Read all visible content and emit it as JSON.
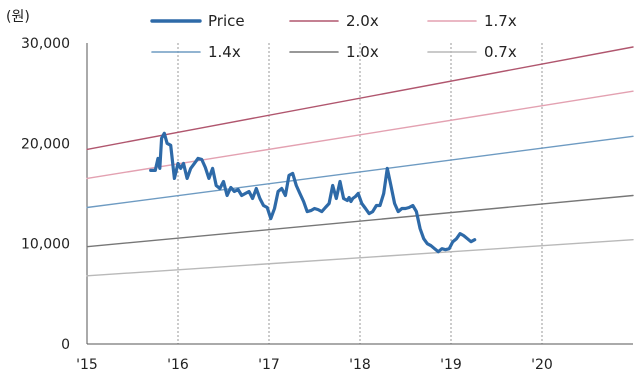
{
  "chart_data": {
    "type": "line",
    "y_unit": "(원)",
    "ylim": [
      0,
      30000
    ],
    "xlim": [
      2015.0,
      2021.0
    ],
    "y_ticks": [
      {
        "value": 0,
        "label": "0"
      },
      {
        "value": 10000,
        "label": "10,000"
      },
      {
        "value": 20000,
        "label": "20,000"
      },
      {
        "value": 30000,
        "label": "30,000"
      }
    ],
    "x_ticks": [
      {
        "value": 2015.0,
        "label": "'15"
      },
      {
        "value": 2016.0,
        "label": "'16"
      },
      {
        "value": 2017.0,
        "label": "'17"
      },
      {
        "value": 2018.0,
        "label": "'18"
      },
      {
        "value": 2019.0,
        "label": "'19"
      },
      {
        "value": 2020.0,
        "label": "'20"
      }
    ],
    "grid": "vertical dashed",
    "legend": "top",
    "series": [
      {
        "name": "Price",
        "color": "#2e6aa8",
        "width": 3.2,
        "x": [
          2015.7,
          2015.75,
          2015.78,
          2015.8,
          2015.82,
          2015.85,
          2015.88,
          2015.92,
          2015.96,
          2016.0,
          2016.03,
          2016.06,
          2016.1,
          2016.14,
          2016.18,
          2016.22,
          2016.26,
          2016.3,
          2016.34,
          2016.38,
          2016.42,
          2016.46,
          2016.5,
          2016.54,
          2016.58,
          2016.62,
          2016.66,
          2016.7,
          2016.74,
          2016.78,
          2016.82,
          2016.86,
          2016.9,
          2016.94,
          2016.98,
          2017.02,
          2017.06,
          2017.1,
          2017.14,
          2017.18,
          2017.22,
          2017.26,
          2017.3,
          2017.34,
          2017.38,
          2017.42,
          2017.46,
          2017.5,
          2017.54,
          2017.58,
          2017.62,
          2017.66,
          2017.7,
          2017.74,
          2017.78,
          2017.82,
          2017.86,
          2017.88,
          2017.9,
          2017.92,
          2017.95,
          2017.98,
          2018.02,
          2018.06,
          2018.1,
          2018.14,
          2018.18,
          2018.22,
          2018.26,
          2018.3,
          2018.34,
          2018.38,
          2018.42,
          2018.46,
          2018.5,
          2018.54,
          2018.58,
          2018.62,
          2018.66,
          2018.7,
          2018.74,
          2018.78,
          2018.82,
          2018.86,
          2018.9,
          2018.94,
          2018.98,
          2019.02,
          2019.06,
          2019.1,
          2019.14,
          2019.18,
          2019.22,
          2019.26
        ],
        "y": [
          17300,
          17300,
          18500,
          17500,
          20500,
          21000,
          20000,
          19800,
          16500,
          18000,
          17500,
          18000,
          16500,
          17500,
          18000,
          18500,
          18400,
          17600,
          16500,
          17500,
          15800,
          15500,
          16200,
          14800,
          15600,
          15200,
          15400,
          14800,
          15000,
          15200,
          14500,
          15500,
          14500,
          13800,
          13600,
          12500,
          13500,
          15200,
          15500,
          14800,
          16800,
          17000,
          15800,
          15000,
          14200,
          13200,
          13300,
          13500,
          13400,
          13200,
          13600,
          14000,
          15800,
          14500,
          16200,
          14500,
          14300,
          14600,
          14200,
          14500,
          14700,
          15000,
          14000,
          13500,
          13000,
          13200,
          13800,
          13800,
          15000,
          17500,
          15800,
          14000,
          13200,
          13500,
          13500,
          13600,
          13800,
          13200,
          11500,
          10500,
          10000,
          9800,
          9500,
          9200,
          9500,
          9400,
          9500,
          10200,
          10500,
          11000,
          10800,
          10500,
          10200,
          10400
        ]
      },
      {
        "name": "2.0x",
        "color": "#b0566e",
        "width": 1.4,
        "x": [
          2015.0,
          2021.0
        ],
        "y": [
          19400,
          29600
        ]
      },
      {
        "name": "1.7x",
        "color": "#e3a1b1",
        "width": 1.4,
        "x": [
          2015.0,
          2021.0
        ],
        "y": [
          16500,
          25200
        ]
      },
      {
        "name": "1.4x",
        "color": "#6e9bc2",
        "width": 1.4,
        "x": [
          2015.0,
          2021.0
        ],
        "y": [
          13600,
          20700
        ]
      },
      {
        "name": "1.0x",
        "color": "#777777",
        "width": 1.4,
        "x": [
          2015.0,
          2021.0
        ],
        "y": [
          9700,
          14800
        ]
      },
      {
        "name": "0.7x",
        "color": "#b9b9b9",
        "width": 1.4,
        "x": [
          2015.0,
          2021.0
        ],
        "y": [
          6800,
          10400
        ]
      }
    ]
  }
}
